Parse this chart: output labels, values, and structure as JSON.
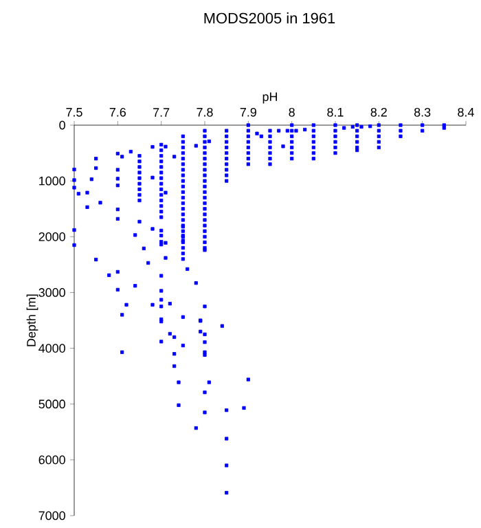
{
  "chart_data": {
    "type": "scatter",
    "title": "MODS2005 in 1961",
    "xlabel": "pH",
    "ylabel": "Depth [m]",
    "xlim": [
      7.5,
      8.4
    ],
    "xticks": [
      7.5,
      7.6,
      7.7,
      7.8,
      7.9,
      8,
      8.1,
      8.2,
      8.3,
      8.4
    ],
    "ylim": [
      7000,
      0
    ],
    "yticks": [
      0,
      1000,
      2000,
      3000,
      4000,
      5000,
      6000,
      7000
    ],
    "marker": "square",
    "series": [
      {
        "color": "#0000ff",
        "x": [
          7.85,
          7.85,
          7.85,
          7.85,
          7.85,
          7.85,
          7.85,
          7.85,
          7.85,
          7.85,
          7.8,
          7.8,
          7.8,
          7.8,
          7.8,
          7.8,
          7.8,
          7.8,
          7.8,
          7.8,
          7.8,
          7.8,
          7.8,
          7.8,
          7.8,
          7.8,
          7.8,
          7.8,
          7.8,
          7.8,
          7.8,
          7.8,
          7.8,
          7.75,
          7.75,
          7.75,
          7.75,
          7.75,
          7.75,
          7.75,
          7.75,
          7.75,
          7.75,
          7.75,
          7.75,
          7.75,
          7.75,
          7.75,
          7.75,
          7.75,
          7.75,
          7.75,
          7.75,
          7.75,
          7.75,
          7.75,
          7.7,
          7.7,
          7.7,
          7.7,
          7.7,
          7.7,
          7.7,
          7.7,
          7.7,
          7.7,
          7.7,
          7.7,
          7.7,
          7.7,
          7.65,
          7.65,
          7.65,
          7.65,
          7.65,
          7.65,
          7.65,
          7.65,
          7.65,
          7.9,
          7.9,
          7.9,
          7.9,
          7.9,
          7.9,
          7.9,
          7.9,
          7.95,
          7.95,
          7.95,
          7.95,
          7.95,
          7.95,
          7.95,
          8,
          8,
          8,
          8,
          8,
          8,
          8,
          8.05,
          8.05,
          8.05,
          8.05,
          8.05,
          8.05,
          8.05,
          8.1,
          8.1,
          8.1,
          8.1,
          8.1,
          8.1,
          8.15,
          8.15,
          8.15,
          8.15,
          8.15,
          8.15,
          8.2,
          8.2,
          8.2,
          8.2,
          8.2,
          8.25,
          8.25,
          8.25,
          8.3,
          8.3,
          8.35,
          8.35,
          8.12,
          8.14,
          8.16,
          8.18,
          7.97,
          7.99,
          8.03,
          7.92,
          7.93,
          7.98,
          8.01,
          7.5,
          7.5,
          7.5,
          7.51,
          7.53,
          7.53,
          7.54,
          7.55,
          7.55,
          7.56,
          7.5,
          7.5,
          7.55,
          7.58,
          7.6,
          7.6,
          7.62,
          7.61,
          7.6,
          7.61,
          7.63,
          7.6,
          7.6,
          7.6,
          7.6,
          7.6,
          7.64,
          7.64,
          7.65,
          7.66,
          7.67,
          7.68,
          7.68,
          7.68,
          7.68,
          7.7,
          7.7,
          7.7,
          7.7,
          7.71,
          7.71,
          7.71,
          7.7,
          7.7,
          7.7,
          7.7,
          7.72,
          7.73,
          7.71,
          7.75,
          7.75,
          7.75,
          7.76,
          7.78,
          7.78,
          7.81,
          7.8,
          7.75,
          7.79,
          7.7,
          7.7,
          7.84,
          7.61,
          7.7,
          7.72,
          7.73,
          7.73,
          7.73,
          7.75,
          7.74,
          7.74,
          7.79,
          7.79,
          7.8,
          7.8,
          7.8,
          7.8,
          7.81,
          7.8,
          7.8,
          7.78,
          7.85,
          7.85,
          7.85,
          7.85,
          7.89,
          7.9
        ],
        "values": [
          100,
          200,
          300,
          400,
          500,
          600,
          700,
          800,
          900,
          1000,
          100,
          200,
          300,
          400,
          500,
          600,
          700,
          800,
          900,
          1000,
          1100,
          1200,
          1300,
          1400,
          1500,
          1600,
          1700,
          1800,
          1900,
          2000,
          2100,
          2200,
          2240,
          200,
          300,
          400,
          500,
          600,
          700,
          800,
          900,
          1000,
          1100,
          1200,
          1300,
          1400,
          1500,
          1600,
          1700,
          1800,
          1900,
          2000,
          2100,
          2200,
          2300,
          2400,
          350,
          450,
          550,
          650,
          750,
          850,
          950,
          1050,
          1150,
          1250,
          1350,
          1450,
          1550,
          1650,
          550,
          650,
          750,
          850,
          950,
          1050,
          1150,
          1250,
          1350,
          0,
          100,
          200,
          300,
          400,
          500,
          600,
          700,
          100,
          200,
          300,
          400,
          500,
          600,
          700,
          0,
          100,
          200,
          300,
          400,
          500,
          600,
          0,
          100,
          200,
          300,
          400,
          500,
          600,
          0,
          100,
          200,
          300,
          400,
          500,
          0,
          100,
          200,
          300,
          400,
          450,
          0,
          100,
          200,
          300,
          400,
          0,
          100,
          200,
          0,
          100,
          0,
          50,
          50,
          30,
          30,
          20,
          100,
          100,
          80,
          150,
          200,
          380,
          100,
          795,
          985,
          1120,
          1230,
          1210,
          1470,
          970,
          600,
          770,
          1390,
          1880,
          2150,
          2410,
          2690,
          2630,
          2950,
          3220,
          3400,
          510,
          565,
          475,
          800,
          960,
          1080,
          1510,
          1680,
          1970,
          2880,
          1730,
          2210,
          2470,
          390,
          940,
          1860,
          3220,
          1890,
          1980,
          2090,
          2140,
          2110,
          1210,
          2380,
          2700,
          2970,
          3130,
          3250,
          3200,
          565,
          385,
          1820,
          1980,
          2070,
          2580,
          370,
          2830,
          290,
          3250,
          3440,
          3500,
          3480,
          3520,
          3600,
          4070,
          3880,
          3740,
          3800,
          4100,
          4320,
          3950,
          4610,
          5020,
          3510,
          3700,
          3750,
          3890,
          4070,
          4120,
          4610,
          4790,
          5150,
          5430,
          5110,
          5620,
          6100,
          6590,
          5070,
          4560
        ]
      }
    ]
  }
}
